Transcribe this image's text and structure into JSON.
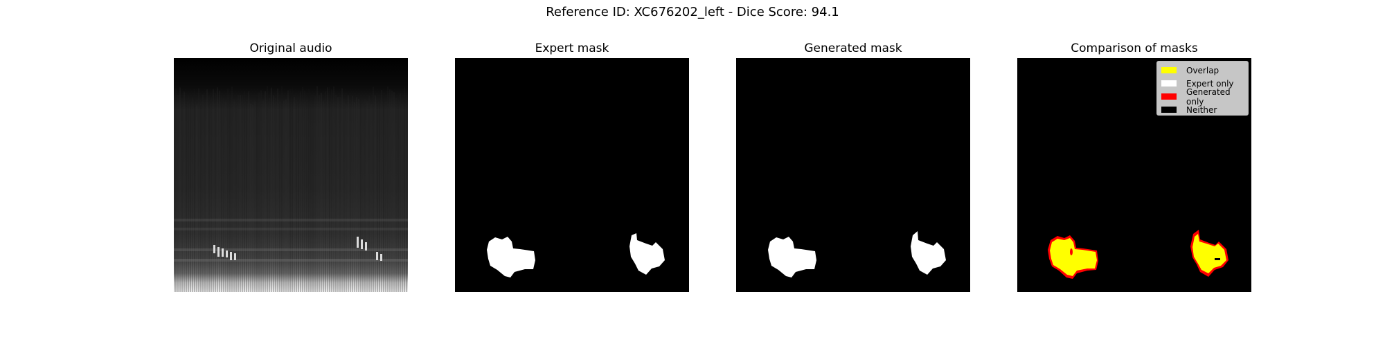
{
  "figure": {
    "suptitle": "Reference ID: XC676202_left - Dice Score: 94.1"
  },
  "panels": [
    {
      "title": "Original audio"
    },
    {
      "title": "Expert mask"
    },
    {
      "title": "Generated mask"
    },
    {
      "title": "Comparison of masks"
    }
  ],
  "legend": {
    "location": "top-right",
    "items": [
      {
        "label": "Overlap",
        "color": "#ffff00"
      },
      {
        "label": "Expert only",
        "color": "#ffffff"
      },
      {
        "label": "Generated only",
        "color": "#ff0000"
      },
      {
        "label": "Neither",
        "color": "#000000"
      }
    ]
  },
  "chart_data": [
    {
      "type": "heatmap",
      "title": "Original audio",
      "colormap": "gray",
      "description": "spectrogram"
    },
    {
      "type": "heatmap",
      "title": "Expert mask",
      "colors": {
        "mask": "#ffffff",
        "background": "#000000"
      }
    },
    {
      "type": "heatmap",
      "title": "Generated mask",
      "colors": {
        "mask": "#ffffff",
        "background": "#000000"
      }
    },
    {
      "type": "heatmap",
      "title": "Comparison of masks",
      "categories": [
        "Overlap",
        "Expert only",
        "Generated only",
        "Neither"
      ],
      "colors": [
        "#ffff00",
        "#ffffff",
        "#ff0000",
        "#000000"
      ]
    }
  ]
}
